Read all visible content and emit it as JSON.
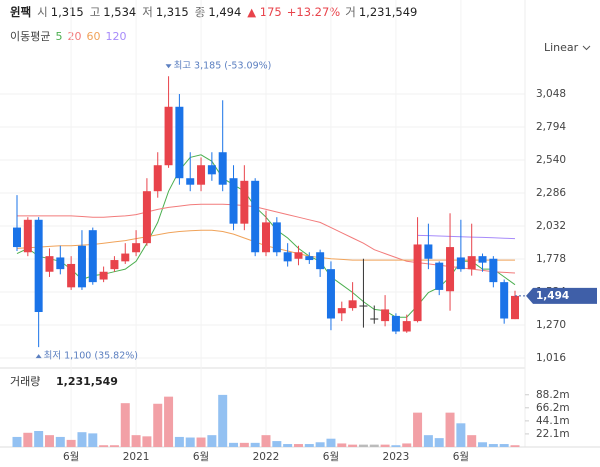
{
  "header": {
    "name": "윈팩",
    "items": [
      {
        "label": "시",
        "value": "1,315"
      },
      {
        "label": "고",
        "value": "1,534"
      },
      {
        "label": "저",
        "value": "1,315"
      },
      {
        "label": "종",
        "value": "1,494"
      }
    ],
    "change": "▲ 175",
    "change_pct": "+13.27%",
    "volume_item": {
      "label": "거",
      "value": "1,231,549"
    }
  },
  "chart_data": {
    "type": "candlestick",
    "title": "윈팩",
    "scale_label": "Linear",
    "last_price_label": "1,494",
    "categories": [
      null,
      null,
      null,
      null,
      null,
      "6월",
      null,
      null,
      null,
      null,
      null,
      "2021",
      null,
      null,
      null,
      null,
      null,
      "6월",
      null,
      null,
      null,
      null,
      null,
      "2022",
      null,
      null,
      null,
      null,
      null,
      "6월",
      null,
      null,
      null,
      null,
      null,
      "2023",
      null,
      null,
      null,
      null,
      null,
      "6월",
      null,
      null,
      null,
      null,
      null
    ],
    "open": [
      2020,
      1830,
      2080,
      1680,
      1790,
      1560,
      1880,
      2000,
      1620,
      1700,
      1760,
      1830,
      1900,
      2300,
      2500,
      2950,
      2400,
      2350,
      2500,
      2600,
      2400,
      2050,
      2380,
      1830,
      2060,
      1830,
      1780,
      1800,
      1830,
      1700,
      1360,
      1400,
      1420,
      1320,
      1300,
      1340,
      1220,
      1300,
      1890,
      1750,
      1530,
      1790,
      1700,
      1800,
      1780,
      1600,
      1315
    ],
    "high": [
      2270,
      2100,
      2100,
      1860,
      1880,
      1800,
      2000,
      2020,
      1720,
      1800,
      1900,
      2000,
      2400,
      2600,
      3185,
      3048,
      2600,
      2560,
      2600,
      3000,
      2500,
      2500,
      2400,
      2150,
      2100,
      1900,
      1880,
      1830,
      1850,
      1760,
      1450,
      1600,
      1780,
      1420,
      1500,
      1360,
      1350,
      2100,
      2050,
      1760,
      2130,
      2080,
      2050,
      1820,
      1800,
      1620,
      1534
    ],
    "low": [
      1840,
      1800,
      1100,
      1640,
      1660,
      1540,
      1540,
      1580,
      1600,
      1680,
      1740,
      1800,
      1880,
      2250,
      2480,
      2350,
      2300,
      2300,
      2380,
      2300,
      2000,
      2000,
      1800,
      1800,
      1800,
      1720,
      1730,
      1740,
      1640,
      1230,
      1300,
      1380,
      1250,
      1280,
      1260,
      1200,
      1210,
      1290,
      1700,
      1500,
      1380,
      1680,
      1650,
      1680,
      1560,
      1280,
      1315
    ],
    "close": [
      1870,
      2080,
      1370,
      1800,
      1700,
      1740,
      1560,
      1600,
      1680,
      1770,
      1820,
      1900,
      2300,
      2500,
      2950,
      2400,
      2350,
      2500,
      2430,
      2350,
      2050,
      2380,
      1830,
      2060,
      1830,
      1760,
      1830,
      1770,
      1700,
      1320,
      1400,
      1460,
      1420,
      1320,
      1390,
      1220,
      1300,
      1890,
      1780,
      1540,
      1870,
      1700,
      1800,
      1750,
      1600,
      1320,
      1494
    ],
    "up_color": "#e8434b",
    "down_color": "#1a73e8",
    "ylim": [
      939,
      3310
    ],
    "yticks": [
      {
        "value": 1016,
        "label": "1,016"
      },
      {
        "value": 1270,
        "label": "1,270"
      },
      {
        "value": 1524,
        "label": "1,524"
      },
      {
        "value": 1778,
        "label": "1,778"
      },
      {
        "value": 2032,
        "label": "2,032"
      },
      {
        "value": 2286,
        "label": "2,286"
      },
      {
        "value": 2540,
        "label": "2,540"
      },
      {
        "value": 2794,
        "label": "2,794"
      },
      {
        "value": 3048,
        "label": "3,048"
      }
    ],
    "grid": true,
    "high_annotation": "최고 3,185 (-53.09%)",
    "low_annotation": "최저 1,100 (35.82%)",
    "moving_averages": {
      "label": "이동평균",
      "series": [
        {
          "name": "5",
          "color": "#4caf50",
          "values": [
            1820,
            1860,
            1800,
            1780,
            1760,
            1700,
            1620,
            1650,
            1660,
            1680,
            1700,
            1760,
            1900,
            2060,
            2300,
            2460,
            2560,
            2580,
            2530,
            2400,
            2350,
            2300,
            2180,
            2100,
            2000,
            1940,
            1860,
            1800,
            1760,
            1640,
            1580,
            1520,
            1450,
            1390,
            1380,
            1330,
            1330,
            1420,
            1520,
            1560,
            1640,
            1760,
            1760,
            1700,
            1700,
            1640,
            1580
          ]
        },
        {
          "name": "20",
          "color": "#f27b7b",
          "values": [
            2110,
            2110,
            2110,
            2110,
            2110,
            2110,
            2105,
            2100,
            2100,
            2105,
            2110,
            2120,
            2140,
            2160,
            2175,
            2185,
            2195,
            2200,
            2200,
            2200,
            2195,
            2190,
            2180,
            2160,
            2140,
            2120,
            2100,
            2080,
            2060,
            2020,
            1980,
            1940,
            1900,
            1850,
            1820,
            1790,
            1760,
            1750,
            1740,
            1730,
            1720,
            1710,
            1700,
            1690,
            1680,
            1675,
            1670
          ]
        },
        {
          "name": "60",
          "color": "#f0a35a",
          "values": [
            1860,
            1865,
            1870,
            1875,
            1880,
            1880,
            1885,
            1890,
            1900,
            1910,
            1920,
            1935,
            1950,
            1965,
            1980,
            1990,
            1995,
            2000,
            2000,
            1990,
            1970,
            1940,
            1910,
            1880,
            1860,
            1840,
            1820,
            1800,
            1790,
            1780,
            1775,
            1770,
            1770,
            1770,
            1770,
            1770,
            1770,
            1770,
            1770,
            1770,
            1770,
            1770,
            1770,
            1770,
            1770,
            1770,
            1770
          ]
        },
        {
          "name": "120",
          "color": "#a78bfa",
          "values": [
            null,
            null,
            null,
            null,
            null,
            null,
            null,
            null,
            null,
            null,
            null,
            null,
            null,
            null,
            null,
            null,
            null,
            null,
            null,
            null,
            null,
            null,
            null,
            null,
            null,
            null,
            null,
            null,
            null,
            null,
            null,
            null,
            null,
            null,
            null,
            null,
            null,
            1960,
            1958,
            1955,
            1952,
            1950,
            1947,
            1944,
            1941,
            1938,
            1935
          ]
        }
      ]
    },
    "volume": {
      "label": "거래량",
      "total": "1,231,549",
      "values": [
        17,
        24,
        27,
        20,
        17,
        12,
        25,
        23,
        3,
        3,
        74,
        20,
        18,
        73,
        85,
        17,
        16,
        16,
        20,
        88,
        7,
        7,
        7,
        20,
        10,
        5,
        5,
        5,
        8,
        14,
        6,
        4,
        4,
        4,
        4,
        3,
        6,
        58,
        20,
        15,
        58,
        40,
        20,
        8,
        5,
        5,
        3
      ],
      "up_color": "#f2a0a6",
      "down_color": "#93c1f2",
      "ylim": [
        0,
        130
      ],
      "yticks": [
        {
          "value": 22.1,
          "label": "22.1m"
        },
        {
          "value": 44.1,
          "label": "44.1m"
        },
        {
          "value": 66.2,
          "label": "66.2m"
        },
        {
          "value": 88.2,
          "label": "88.2m"
        }
      ]
    }
  }
}
